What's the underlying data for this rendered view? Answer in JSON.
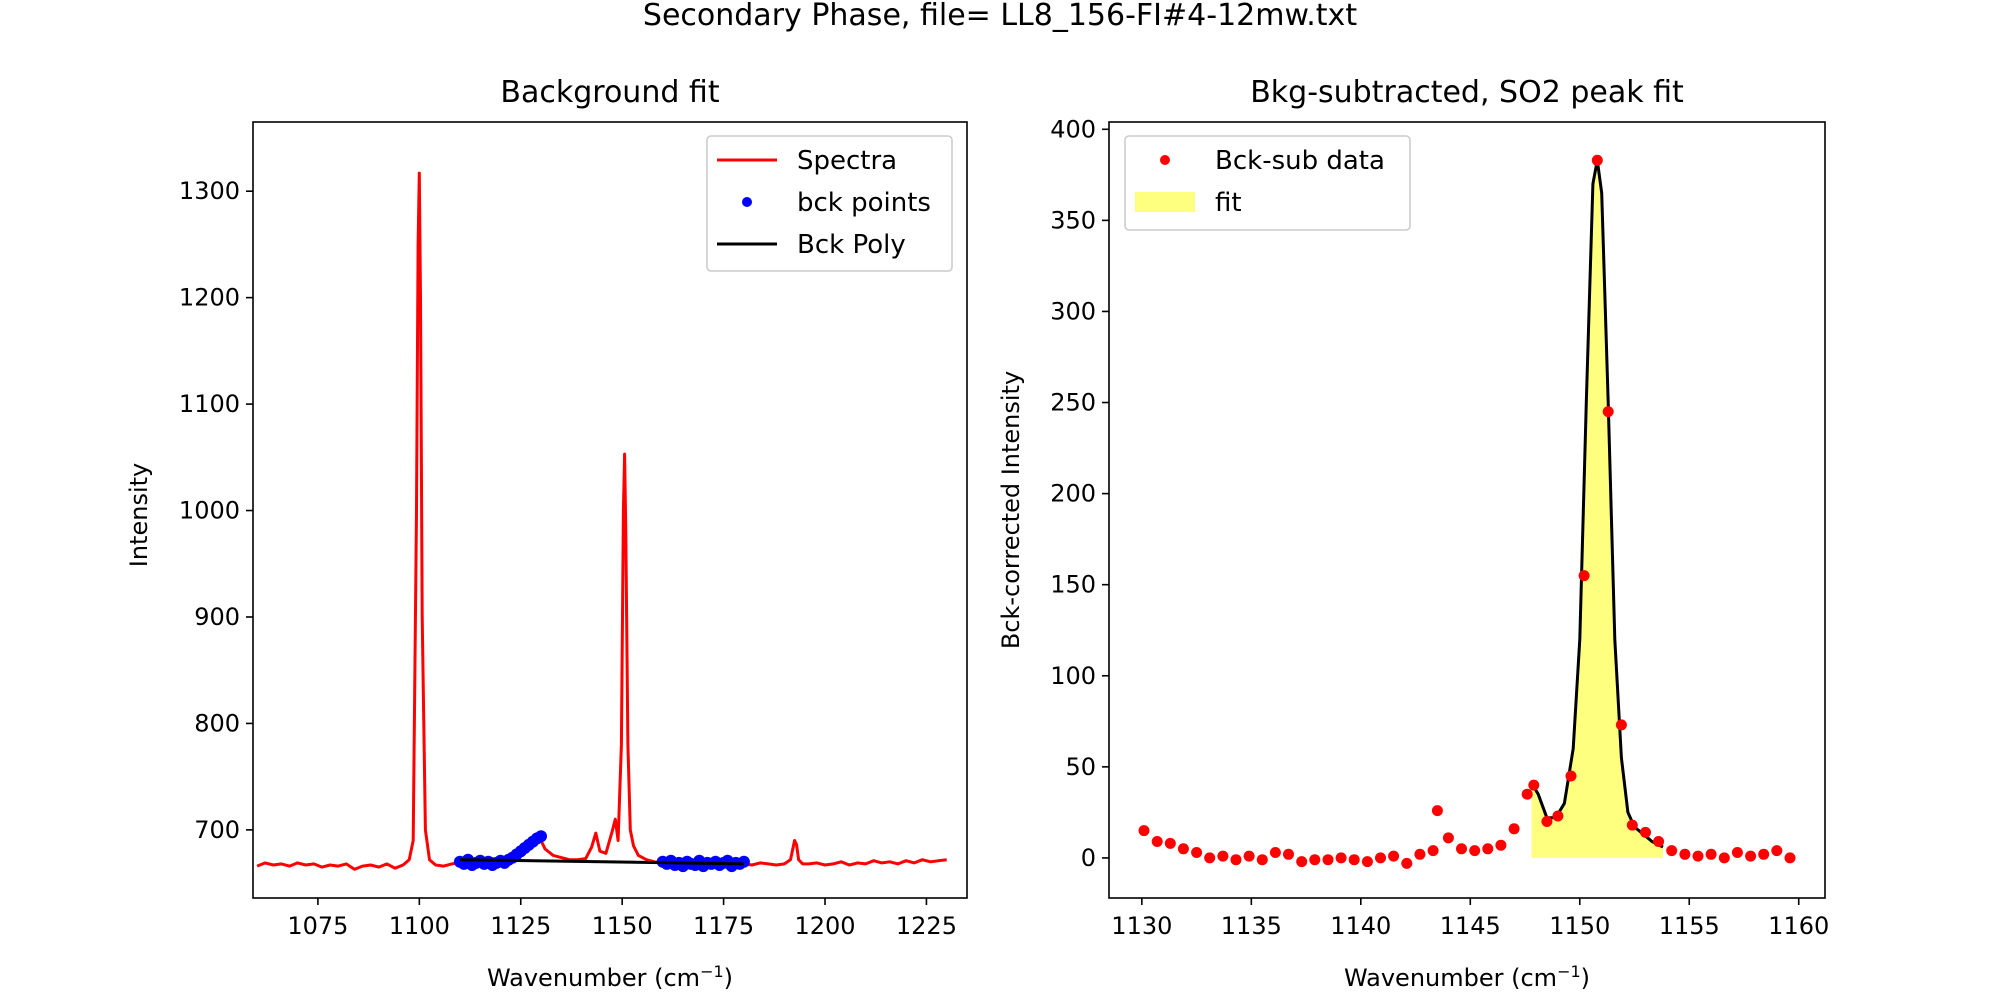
{
  "figure": {
    "suptitle": "Secondary Phase, file= LL8_156-FI#4-12mw.txt"
  },
  "chart_data": [
    {
      "type": "line",
      "title": "Background fit",
      "xlabel_prefix": "Wavenumber (cm",
      "xlabel_sup": "−1",
      "xlabel_suffix": ")",
      "ylabel": "Intensity",
      "xlim": [
        1059,
        1235
      ],
      "ylim": [
        636,
        1365
      ],
      "xticks": [
        1075,
        1100,
        1125,
        1150,
        1175,
        1200,
        1225
      ],
      "yticks": [
        700,
        800,
        900,
        1000,
        1100,
        1200,
        1300
      ],
      "legend_position": "upper right",
      "colors": {
        "spectra": "#ff0000",
        "bck_points": "#0000ff",
        "bck_poly": "#000000"
      },
      "series": [
        {
          "name": "Spectra",
          "kind": "line",
          "x": [
            1060,
            1062,
            1064,
            1066,
            1068,
            1070,
            1072,
            1074,
            1076,
            1078,
            1080,
            1082,
            1084,
            1086,
            1088,
            1090,
            1092,
            1094,
            1096,
            1097.5,
            1098.5,
            1099.3,
            1099.7,
            1100.0,
            1100.3,
            1100.7,
            1101.5,
            1102.5,
            1104,
            1106,
            1108,
            1110,
            1112,
            1114,
            1116,
            1118,
            1120,
            1122,
            1124,
            1126,
            1128,
            1129.5,
            1131,
            1133,
            1135,
            1137,
            1139,
            1141,
            1142.5,
            1143.5,
            1144.5,
            1146,
            1147.5,
            1148.3,
            1149,
            1149.8,
            1150.3,
            1150.6,
            1150.9,
            1151.4,
            1152,
            1152.8,
            1154,
            1156,
            1158,
            1160,
            1162,
            1164,
            1166,
            1168,
            1170,
            1172,
            1174,
            1176,
            1178,
            1180,
            1182,
            1184,
            1186,
            1188,
            1190,
            1191.5,
            1192.5,
            1193,
            1193.5,
            1194.5,
            1196,
            1198,
            1200,
            1202,
            1204,
            1206,
            1208,
            1210,
            1212,
            1214,
            1216,
            1218,
            1220,
            1222,
            1224,
            1226,
            1228,
            1230
          ],
          "y": [
            666,
            669,
            667,
            668,
            666,
            669,
            667,
            668,
            665,
            667,
            666,
            668,
            663,
            666,
            667,
            665,
            668,
            664,
            667,
            672,
            690,
            1000,
            1250,
            1317,
            1200,
            900,
            700,
            672,
            667,
            666,
            668,
            669,
            672,
            670,
            671,
            673,
            671,
            674,
            679,
            686,
            692,
            694,
            682,
            676,
            674,
            672,
            672,
            673,
            684,
            697,
            680,
            678,
            698,
            710,
            690,
            780,
            1000,
            1053,
            980,
            780,
            700,
            685,
            676,
            672,
            670,
            669,
            668,
            667,
            669,
            668,
            667,
            669,
            668,
            667,
            669,
            668,
            667,
            669,
            668,
            667,
            668,
            672,
            690,
            686,
            672,
            668,
            668,
            669,
            667,
            668,
            670,
            667,
            669,
            668,
            671,
            669,
            670,
            668,
            671,
            669,
            672,
            670,
            671,
            672
          ]
        },
        {
          "name": "bck points",
          "kind": "scatter",
          "x": [
            1110,
            1111,
            1112,
            1113,
            1114,
            1115,
            1116,
            1117,
            1118,
            1119,
            1120,
            1121,
            1122,
            1123,
            1124,
            1125,
            1126,
            1127,
            1128,
            1129,
            1130,
            1160,
            1161,
            1162,
            1163,
            1164,
            1165,
            1166,
            1167,
            1168,
            1169,
            1170,
            1171,
            1172,
            1173,
            1174,
            1175,
            1176,
            1177,
            1178,
            1179,
            1180
          ],
          "y": [
            670,
            668,
            672,
            667,
            669,
            671,
            668,
            670,
            667,
            669,
            671,
            669,
            672,
            674,
            677,
            680,
            683,
            686,
            689,
            692,
            694,
            670,
            668,
            671,
            667,
            669,
            666,
            670,
            668,
            667,
            671,
            666,
            669,
            668,
            670,
            667,
            669,
            671,
            666,
            669,
            668,
            670
          ]
        },
        {
          "name": "Bck Poly",
          "kind": "line",
          "x": [
            1110,
            1180
          ],
          "y": [
            672,
            668
          ]
        }
      ]
    },
    {
      "type": "line",
      "title": "Bkg-subtracted, SO2 peak fit",
      "xlabel_prefix": "Wavenumber (cm",
      "xlabel_sup": "−1",
      "xlabel_suffix": ")",
      "ylabel": "Bck-corrected Intensity",
      "xlim": [
        1128.5,
        1161.2
      ],
      "ylim": [
        -22,
        404
      ],
      "xticks": [
        1130,
        1135,
        1140,
        1145,
        1150,
        1155,
        1160
      ],
      "yticks": [
        0,
        50,
        100,
        150,
        200,
        250,
        300,
        350,
        400
      ],
      "legend_position": "upper left",
      "colors": {
        "data": "#ff0000",
        "fit_fill": "#ffff00",
        "fit_line": "#000000"
      },
      "series": [
        {
          "name": "Bck-sub data",
          "kind": "scatter",
          "x": [
            1130.1,
            1130.7,
            1131.3,
            1131.9,
            1132.5,
            1133.1,
            1133.7,
            1134.3,
            1134.9,
            1135.5,
            1136.1,
            1136.7,
            1137.3,
            1137.9,
            1138.5,
            1139.1,
            1139.7,
            1140.3,
            1140.9,
            1141.5,
            1142.1,
            1142.7,
            1143.3,
            1143.5,
            1144.0,
            1144.6,
            1145.2,
            1145.8,
            1146.4,
            1147.0,
            1147.6,
            1147.9,
            1148.5,
            1149.0,
            1149.6,
            1150.2,
            1150.8,
            1151.3,
            1151.9,
            1152.4,
            1153.0,
            1153.6,
            1154.2,
            1154.8,
            1155.4,
            1156.0,
            1156.6,
            1157.2,
            1157.8,
            1158.4,
            1159.0,
            1159.6
          ],
          "y": [
            15,
            9,
            8,
            5,
            3,
            0,
            1,
            -1,
            1,
            -1,
            3,
            2,
            -2,
            -1,
            -1,
            0,
            -1,
            -2,
            0,
            1,
            -3,
            2,
            4,
            26,
            11,
            5,
            4,
            5,
            7,
            16,
            35,
            40,
            20,
            23,
            45,
            155,
            383,
            245,
            73,
            18,
            14,
            9,
            4,
            2,
            1,
            2,
            0,
            3,
            1,
            2,
            4,
            0
          ]
        },
        {
          "name": "fit",
          "kind": "filled-line",
          "x": [
            1147.8,
            1148.1,
            1148.5,
            1148.9,
            1149.3,
            1149.7,
            1150.0,
            1150.3,
            1150.6,
            1150.8,
            1151.0,
            1151.3,
            1151.6,
            1151.9,
            1152.2,
            1152.5,
            1152.9,
            1153.3,
            1153.8
          ],
          "y": [
            41,
            35,
            22,
            22,
            30,
            60,
            120,
            250,
            370,
            383,
            365,
            250,
            120,
            55,
            25,
            17,
            13,
            9,
            6
          ]
        }
      ]
    }
  ],
  "legends": [
    {
      "items": [
        "Spectra",
        "bck points",
        "Bck Poly"
      ]
    },
    {
      "items": [
        "Bck-sub data",
        "fit"
      ]
    }
  ]
}
